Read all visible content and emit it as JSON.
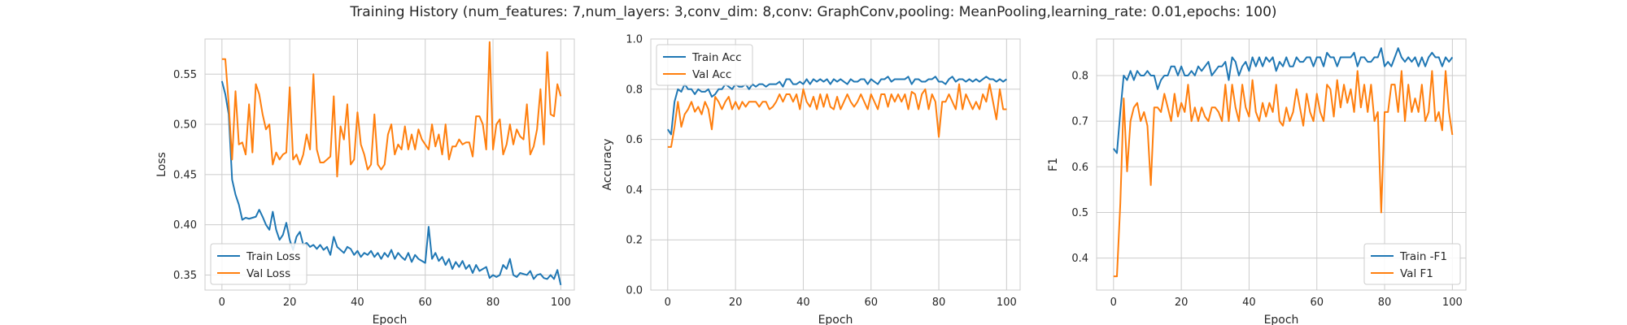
{
  "figure": {
    "title": "Training History (num_features: 7,num_layers: 3,conv_dim: 8,conv: GraphConv,pooling: MeanPooling,learning_rate: 0.01,epochs: 100)",
    "colors": {
      "series_1": "#1f77b4",
      "series_2": "#ff7f0e",
      "grid": "#cccccc",
      "frame": "#cccccc"
    }
  },
  "chart_data": [
    {
      "type": "line",
      "xlabel": "Epoch",
      "ylabel": "Loss",
      "xlim": [
        -5,
        104
      ],
      "ylim": [
        0.335,
        0.585
      ],
      "xticks": [
        0,
        20,
        40,
        60,
        80,
        100
      ],
      "yticks": [
        0.35,
        0.4,
        0.45,
        0.5,
        0.55
      ],
      "ytick_labels": [
        "0.35",
        "0.40",
        "0.45",
        "0.50",
        "0.55"
      ],
      "grid": true,
      "legend_position": "lower-left",
      "series": [
        {
          "name": "Train Loss",
          "values": [
            0.543,
            0.53,
            0.51,
            0.445,
            0.43,
            0.42,
            0.405,
            0.407,
            0.406,
            0.407,
            0.408,
            0.415,
            0.408,
            0.4,
            0.395,
            0.413,
            0.395,
            0.385,
            0.39,
            0.402,
            0.385,
            0.375,
            0.388,
            0.393,
            0.38,
            0.382,
            0.378,
            0.38,
            0.376,
            0.38,
            0.375,
            0.378,
            0.37,
            0.388,
            0.378,
            0.375,
            0.372,
            0.378,
            0.376,
            0.37,
            0.374,
            0.368,
            0.372,
            0.37,
            0.374,
            0.368,
            0.372,
            0.366,
            0.372,
            0.368,
            0.375,
            0.366,
            0.372,
            0.368,
            0.365,
            0.372,
            0.363,
            0.37,
            0.366,
            0.364,
            0.362,
            0.398,
            0.366,
            0.372,
            0.364,
            0.368,
            0.36,
            0.366,
            0.356,
            0.363,
            0.358,
            0.364,
            0.356,
            0.36,
            0.352,
            0.36,
            0.354,
            0.356,
            0.358,
            0.347,
            0.35,
            0.348,
            0.35,
            0.36,
            0.356,
            0.366,
            0.35,
            0.348,
            0.352,
            0.351,
            0.35,
            0.354,
            0.346,
            0.35,
            0.351,
            0.347,
            0.346,
            0.35,
            0.346,
            0.355,
            0.34
          ]
        },
        {
          "name": "Val Loss",
          "values": [
            0.565,
            0.565,
            0.52,
            0.465,
            0.533,
            0.48,
            0.482,
            0.47,
            0.52,
            0.472,
            0.54,
            0.53,
            0.51,
            0.495,
            0.5,
            0.46,
            0.472,
            0.465,
            0.47,
            0.472,
            0.537,
            0.465,
            0.47,
            0.46,
            0.47,
            0.49,
            0.475,
            0.55,
            0.475,
            0.462,
            0.462,
            0.465,
            0.468,
            0.528,
            0.448,
            0.498,
            0.485,
            0.52,
            0.46,
            0.465,
            0.512,
            0.48,
            0.47,
            0.455,
            0.46,
            0.51,
            0.46,
            0.455,
            0.46,
            0.49,
            0.5,
            0.47,
            0.48,
            0.475,
            0.498,
            0.475,
            0.49,
            0.475,
            0.495,
            0.485,
            0.48,
            0.475,
            0.5,
            0.478,
            0.49,
            0.47,
            0.5,
            0.465,
            0.478,
            0.478,
            0.485,
            0.48,
            0.482,
            0.482,
            0.468,
            0.508,
            0.508,
            0.5,
            0.475,
            0.582,
            0.475,
            0.5,
            0.505,
            0.47,
            0.48,
            0.5,
            0.48,
            0.495,
            0.488,
            0.485,
            0.52,
            0.47,
            0.478,
            0.495,
            0.535,
            0.48,
            0.572,
            0.51,
            0.508,
            0.54,
            0.528
          ]
        }
      ]
    },
    {
      "type": "line",
      "xlabel": "Epoch",
      "ylabel": "Accuracy",
      "xlim": [
        -5,
        104
      ],
      "ylim": [
        0,
        1.0
      ],
      "xticks": [
        0,
        20,
        40,
        60,
        80,
        100
      ],
      "yticks": [
        0.0,
        0.2,
        0.4,
        0.6,
        0.8,
        1.0
      ],
      "ytick_labels": [
        "0.0",
        "0.2",
        "0.4",
        "0.6",
        "0.8",
        "1.0"
      ],
      "grid": true,
      "legend_position": "upper-left",
      "series": [
        {
          "name": "Train Acc",
          "values": [
            0.64,
            0.62,
            0.75,
            0.8,
            0.79,
            0.82,
            0.8,
            0.8,
            0.78,
            0.8,
            0.79,
            0.79,
            0.8,
            0.77,
            0.78,
            0.8,
            0.8,
            0.82,
            0.81,
            0.8,
            0.82,
            0.81,
            0.81,
            0.82,
            0.8,
            0.82,
            0.81,
            0.82,
            0.82,
            0.81,
            0.82,
            0.82,
            0.82,
            0.83,
            0.81,
            0.84,
            0.84,
            0.82,
            0.82,
            0.83,
            0.82,
            0.84,
            0.82,
            0.84,
            0.83,
            0.84,
            0.83,
            0.84,
            0.82,
            0.84,
            0.83,
            0.84,
            0.83,
            0.82,
            0.84,
            0.83,
            0.83,
            0.84,
            0.84,
            0.82,
            0.84,
            0.83,
            0.82,
            0.84,
            0.84,
            0.85,
            0.83,
            0.84,
            0.84,
            0.84,
            0.84,
            0.85,
            0.82,
            0.84,
            0.84,
            0.83,
            0.83,
            0.84,
            0.84,
            0.85,
            0.83,
            0.83,
            0.82,
            0.84,
            0.85,
            0.83,
            0.84,
            0.84,
            0.83,
            0.84,
            0.83,
            0.84,
            0.83,
            0.84,
            0.85,
            0.84,
            0.84,
            0.83,
            0.84,
            0.83,
            0.84
          ]
        },
        {
          "name": "Val Acc",
          "values": [
            0.57,
            0.57,
            0.65,
            0.75,
            0.65,
            0.7,
            0.72,
            0.75,
            0.71,
            0.73,
            0.7,
            0.75,
            0.72,
            0.64,
            0.77,
            0.75,
            0.72,
            0.75,
            0.77,
            0.72,
            0.75,
            0.72,
            0.75,
            0.73,
            0.75,
            0.75,
            0.75,
            0.73,
            0.75,
            0.75,
            0.72,
            0.73,
            0.75,
            0.78,
            0.75,
            0.78,
            0.78,
            0.75,
            0.78,
            0.72,
            0.8,
            0.75,
            0.73,
            0.77,
            0.72,
            0.78,
            0.73,
            0.78,
            0.73,
            0.72,
            0.77,
            0.72,
            0.75,
            0.78,
            0.75,
            0.73,
            0.75,
            0.78,
            0.75,
            0.72,
            0.78,
            0.75,
            0.72,
            0.78,
            0.78,
            0.73,
            0.78,
            0.75,
            0.78,
            0.75,
            0.78,
            0.72,
            0.79,
            0.78,
            0.72,
            0.78,
            0.8,
            0.72,
            0.78,
            0.75,
            0.61,
            0.75,
            0.75,
            0.78,
            0.75,
            0.72,
            0.82,
            0.72,
            0.78,
            0.75,
            0.72,
            0.75,
            0.72,
            0.78,
            0.75,
            0.82,
            0.75,
            0.68,
            0.8,
            0.72,
            0.72
          ]
        }
      ]
    },
    {
      "type": "line",
      "xlabel": "Epoch",
      "ylabel": "F1",
      "xlim": [
        -5,
        104
      ],
      "ylim": [
        0.33,
        0.88
      ],
      "xticks": [
        0,
        20,
        40,
        60,
        80,
        100
      ],
      "yticks": [
        0.4,
        0.5,
        0.6,
        0.7,
        0.8
      ],
      "ytick_labels": [
        "0.4",
        "0.5",
        "0.6",
        "0.7",
        "0.8"
      ],
      "grid": true,
      "legend_position": "lower-right",
      "series": [
        {
          "name": "Train -F1",
          "values": [
            0.64,
            0.63,
            0.72,
            0.8,
            0.79,
            0.81,
            0.79,
            0.81,
            0.8,
            0.8,
            0.81,
            0.8,
            0.8,
            0.77,
            0.79,
            0.8,
            0.8,
            0.82,
            0.82,
            0.8,
            0.82,
            0.8,
            0.8,
            0.81,
            0.8,
            0.82,
            0.81,
            0.82,
            0.83,
            0.8,
            0.81,
            0.82,
            0.82,
            0.83,
            0.79,
            0.84,
            0.83,
            0.8,
            0.82,
            0.83,
            0.81,
            0.84,
            0.82,
            0.84,
            0.82,
            0.84,
            0.83,
            0.84,
            0.81,
            0.83,
            0.82,
            0.84,
            0.82,
            0.82,
            0.84,
            0.83,
            0.83,
            0.84,
            0.84,
            0.82,
            0.84,
            0.84,
            0.82,
            0.85,
            0.84,
            0.84,
            0.82,
            0.84,
            0.84,
            0.84,
            0.84,
            0.85,
            0.82,
            0.84,
            0.84,
            0.83,
            0.83,
            0.84,
            0.84,
            0.86,
            0.82,
            0.83,
            0.82,
            0.84,
            0.86,
            0.84,
            0.83,
            0.84,
            0.83,
            0.84,
            0.82,
            0.84,
            0.82,
            0.84,
            0.85,
            0.84,
            0.84,
            0.82,
            0.84,
            0.83,
            0.84
          ]
        },
        {
          "name": "Val F1",
          "values": [
            0.36,
            0.36,
            0.52,
            0.75,
            0.59,
            0.7,
            0.73,
            0.74,
            0.7,
            0.72,
            0.69,
            0.56,
            0.73,
            0.73,
            0.72,
            0.76,
            0.73,
            0.7,
            0.76,
            0.71,
            0.74,
            0.72,
            0.78,
            0.7,
            0.73,
            0.7,
            0.73,
            0.71,
            0.7,
            0.73,
            0.73,
            0.72,
            0.7,
            0.78,
            0.7,
            0.78,
            0.73,
            0.7,
            0.78,
            0.73,
            0.71,
            0.79,
            0.72,
            0.7,
            0.74,
            0.71,
            0.74,
            0.72,
            0.78,
            0.7,
            0.69,
            0.73,
            0.7,
            0.72,
            0.77,
            0.73,
            0.69,
            0.76,
            0.72,
            0.7,
            0.76,
            0.72,
            0.7,
            0.78,
            0.77,
            0.71,
            0.79,
            0.73,
            0.78,
            0.74,
            0.77,
            0.72,
            0.81,
            0.73,
            0.78,
            0.72,
            0.78,
            0.7,
            0.72,
            0.5,
            0.72,
            0.72,
            0.78,
            0.78,
            0.72,
            0.81,
            0.7,
            0.78,
            0.72,
            0.75,
            0.72,
            0.78,
            0.7,
            0.72,
            0.81,
            0.7,
            0.72,
            0.68,
            0.81,
            0.72,
            0.67
          ]
        }
      ]
    }
  ]
}
